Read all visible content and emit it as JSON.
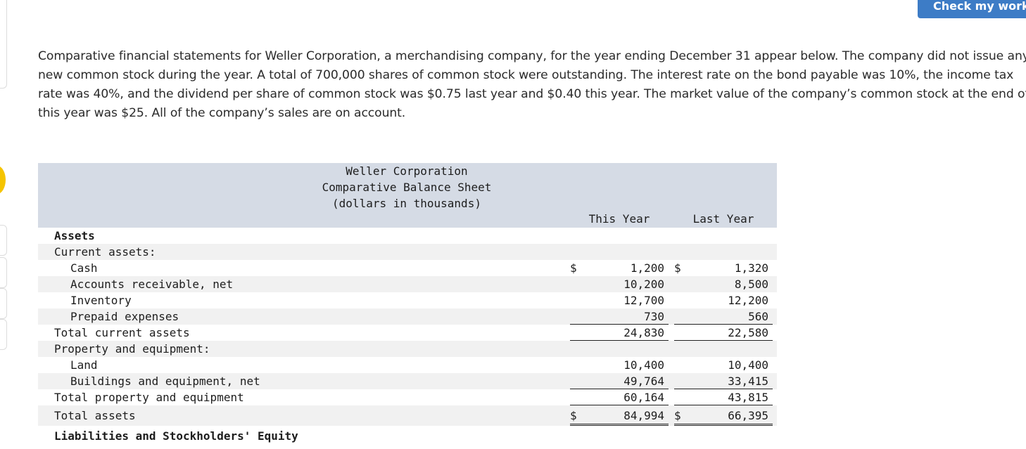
{
  "header": {
    "check_button_label": "Check my work"
  },
  "problem": {
    "intro_text": "Comparative financial statements for Weller Corporation, a merchandising company, for the year ending December 31 appear below. The company did not issue any new common stock during the year. A total of 700,000 shares of common stock were outstanding. The interest rate on the bond payable was 10%, the income tax rate was 40%, and the dividend per share of common stock was $0.75 last year and $0.40 this year. The market value of the company’s common stock at the end of this year was $25. All of the company’s sales are on account."
  },
  "balance_sheet": {
    "title_lines": [
      "Weller Corporation",
      "Comparative Balance Sheet",
      "(dollars in thousands)"
    ],
    "columns": [
      "This Year",
      "Last Year"
    ],
    "rows": [
      {
        "label": "Assets",
        "this_year": "",
        "last_year": ""
      },
      {
        "label": "Current assets:",
        "this_year": "",
        "last_year": ""
      },
      {
        "label": "Cash",
        "this_year_sign": "$",
        "this_year": "1,200",
        "last_year_sign": "$",
        "last_year": "1,320"
      },
      {
        "label": "Accounts receivable, net",
        "this_year": "10,200",
        "last_year": "8,500"
      },
      {
        "label": "Inventory",
        "this_year": "12,700",
        "last_year": "12,200"
      },
      {
        "label": "Prepaid expenses",
        "this_year": "730",
        "last_year": "560"
      },
      {
        "label": "Total current assets",
        "this_year": "24,830",
        "last_year": "22,580"
      },
      {
        "label": "Property and equipment:",
        "this_year": "",
        "last_year": ""
      },
      {
        "label": "Land",
        "this_year": "10,400",
        "last_year": "10,400"
      },
      {
        "label": "Buildings and equipment, net",
        "this_year": "49,764",
        "last_year": "33,415"
      },
      {
        "label": "Total property and equipment",
        "this_year": "60,164",
        "last_year": "43,815"
      },
      {
        "label": "Total assets",
        "this_year_sign": "$",
        "this_year": "84,994",
        "last_year_sign": "$",
        "last_year": "66,395"
      },
      {
        "label": "Liabilities and Stockholders' Equity",
        "this_year": "",
        "last_year": ""
      }
    ]
  }
}
